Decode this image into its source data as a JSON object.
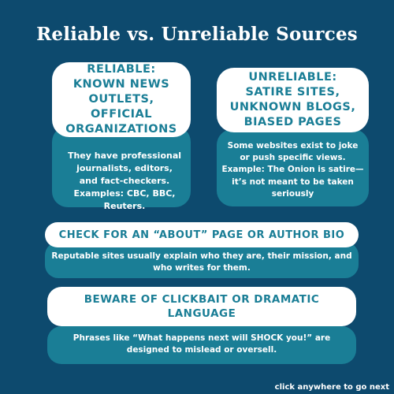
{
  "title": "Reliable vs. Unreliable Sources",
  "reliable": {
    "heading": "Reliable: Known news outlets, official organizations",
    "body": "They have professional journalists, editors, and fact-checkers. Examples: CBC, BBC, Reuters."
  },
  "unreliable": {
    "heading": "Unreliable: Satire sites, unknown blogs, biased pages",
    "body": "Some websites exist to joke or push specific views. Example: The Onion is satire—it’s not meant to be taken seriously"
  },
  "about": {
    "heading": "Check for an “About” page or author bio",
    "body": "Reputable sites usually explain who they are, their mission, and who writes for them."
  },
  "clickbait": {
    "heading": "Beware of clickbait or dramatic language",
    "body": "Phrases like “What happens next will SHOCK you!” are designed to mislead or oversell."
  },
  "navigation": {
    "next_label": "click anywhere to go next"
  },
  "colors": {
    "background": "#0d4a6e",
    "accent": "#1a7e96",
    "card": "#ffffff"
  }
}
